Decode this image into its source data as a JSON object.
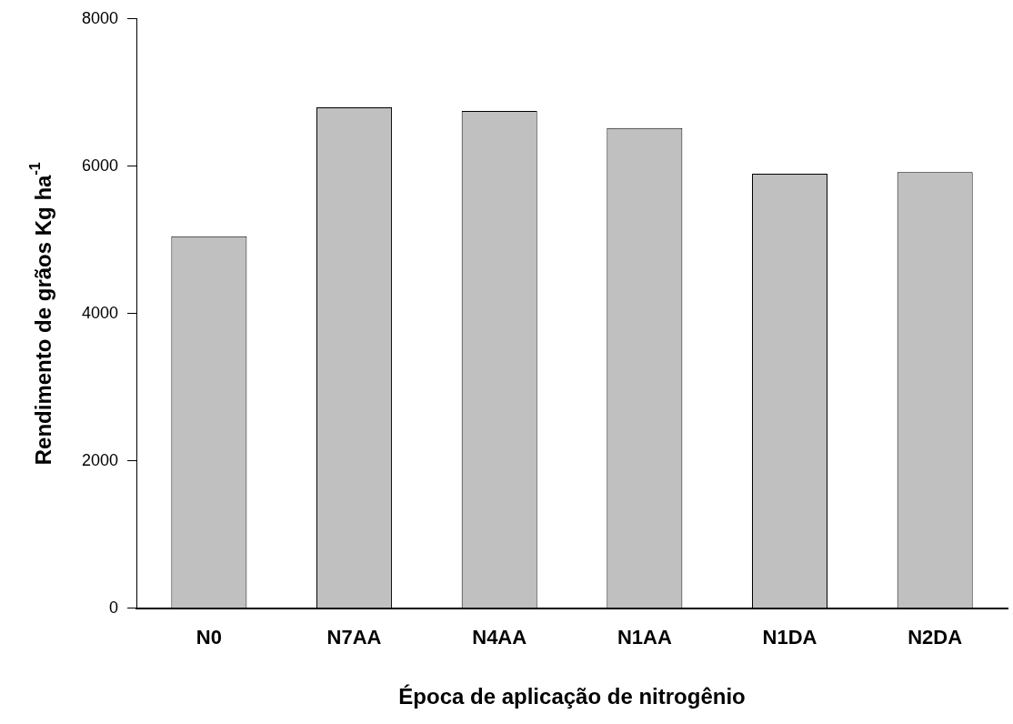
{
  "chart_data": {
    "type": "bar",
    "xlabel": "Época de aplicação de nitrogênio",
    "ylabel": "Rendimento de grãos Kg ha$^{-1}$",
    "categories": [
      "N0",
      "N7AA",
      "N4AA",
      "N1AA",
      "N1DA",
      "N2DA"
    ],
    "values": [
      5050,
      6800,
      6750,
      6520,
      5900,
      5920
    ],
    "color": "#c0c0c0",
    "ylim": [
      0,
      8000
    ],
    "yticks": [
      0,
      2000,
      4000,
      6000,
      8000
    ],
    "grid": false,
    "legend": false
  }
}
